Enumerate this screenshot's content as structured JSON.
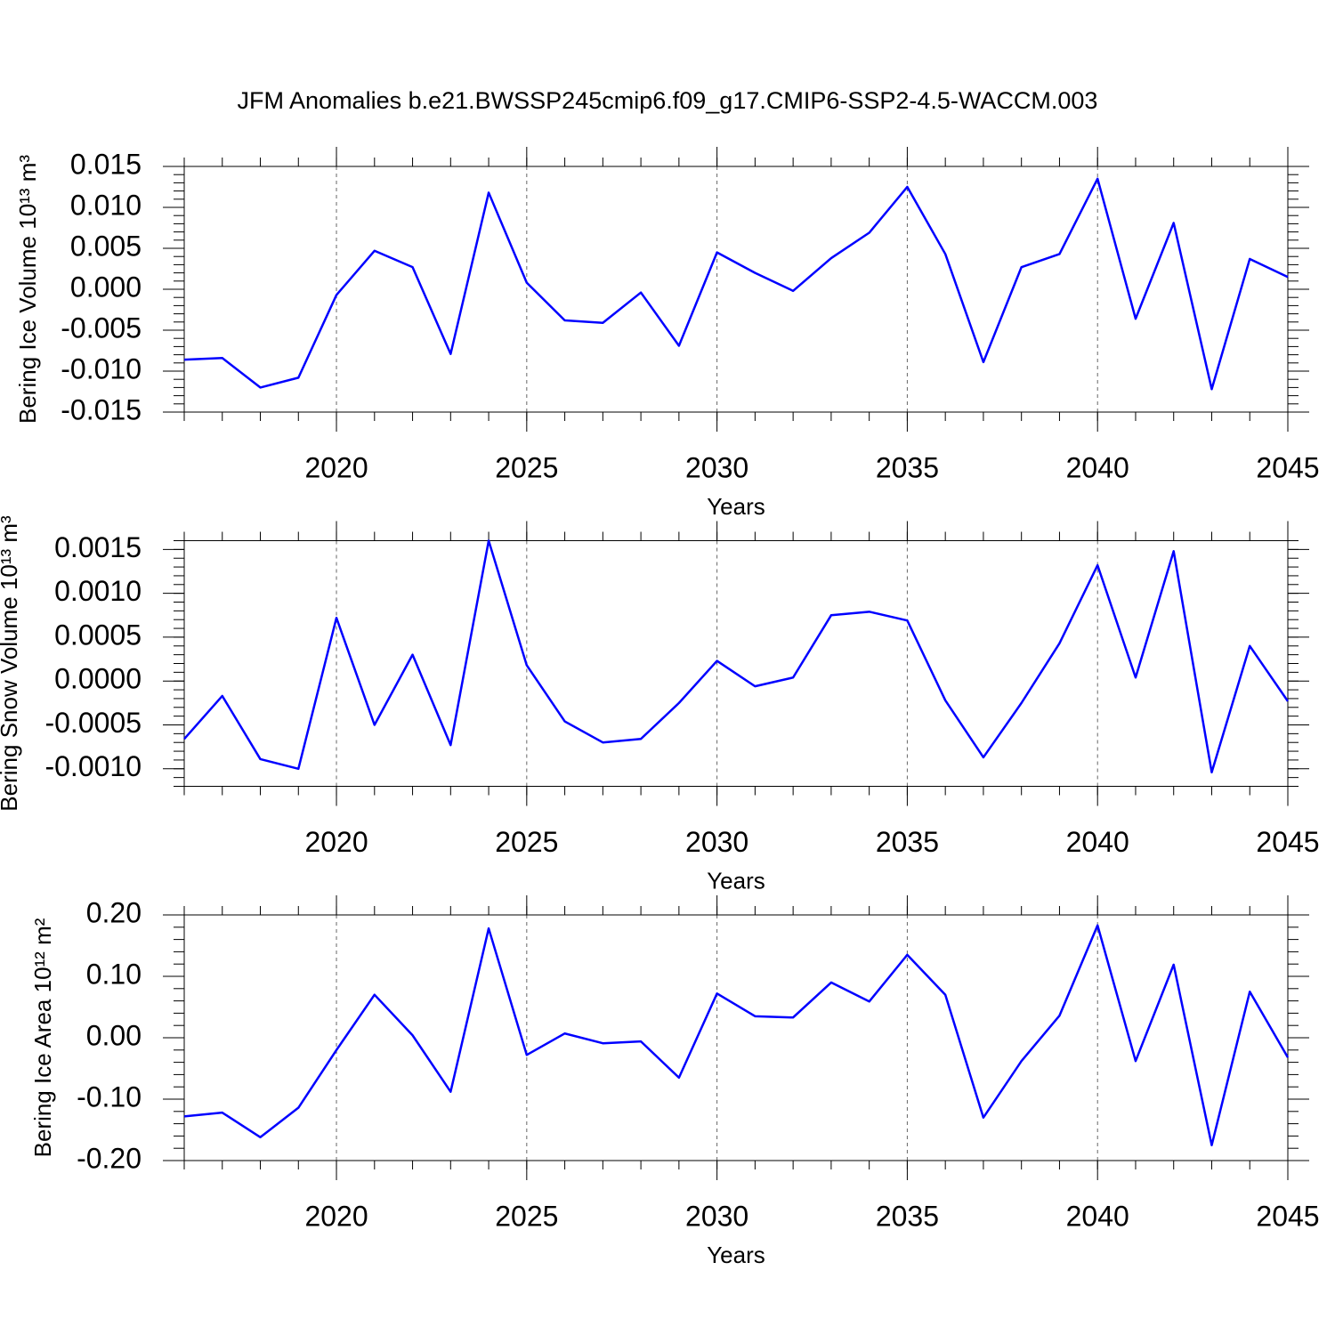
{
  "chart_data": [
    {
      "type": "line",
      "title": "JFM Anomalies b.e21.BWSSP245cmip6.f09_g17.CMIP6-SSP2-4.5-WACCM.003",
      "xlabel": "Years",
      "ylabel": "Bering Ice Volume 10¹³ m³",
      "x": [
        2016,
        2017,
        2018,
        2019,
        2020,
        2021,
        2022,
        2023,
        2024,
        2025,
        2026,
        2027,
        2028,
        2029,
        2030,
        2031,
        2032,
        2033,
        2034,
        2035,
        2036,
        2037,
        2038,
        2039,
        2040,
        2041,
        2042,
        2043,
        2044,
        2045
      ],
      "series": [
        {
          "color": "#0000ff",
          "values": [
            -0.0086,
            -0.0084,
            -0.012,
            -0.0108,
            -0.0007,
            0.0047,
            0.0027,
            -0.0079,
            0.0118,
            0.0008,
            -0.0038,
            -0.0041,
            -0.0004,
            -0.0069,
            0.0045,
            0.002,
            -0.0002,
            0.0038,
            0.0069,
            0.0125,
            0.0043,
            -0.0089,
            0.0027,
            0.0043,
            0.0135,
            -0.0036,
            0.0081,
            -0.0122,
            0.0037,
            0.0015
          ]
        }
      ],
      "xlim": [
        2016,
        2045
      ],
      "xticks": [
        2020,
        2025,
        2030,
        2035,
        2040,
        2045
      ],
      "ylim": [
        -0.015,
        0.015
      ],
      "yticks": [
        0.015,
        {
          "value": 0.01,
          "label": "0.010"
        },
        {
          "value": 0.005,
          "label": "0.005"
        },
        {
          "value": 0,
          "label": "0.000"
        },
        {
          "value": -0.005,
          "label": "-0.005"
        },
        {
          "value": -0.01,
          "label": "-0.010"
        },
        -0.015
      ],
      "grid": "x"
    },
    {
      "type": "line",
      "xlabel": "Years",
      "ylabel": "Bering Snow Volume 10¹³ m³",
      "x": [
        2016,
        2017,
        2018,
        2019,
        2020,
        2021,
        2022,
        2023,
        2024,
        2025,
        2026,
        2027,
        2028,
        2029,
        2030,
        2031,
        2032,
        2033,
        2034,
        2035,
        2036,
        2037,
        2038,
        2039,
        2040,
        2041,
        2042,
        2043,
        2044,
        2045
      ],
      "series": [
        {
          "color": "#0000ff",
          "values": [
            -0.00066,
            -0.00017,
            -0.00089,
            -0.001,
            0.00072,
            -0.0005,
            0.0003,
            -0.00073,
            0.0016,
            0.00018,
            -0.00046,
            -0.0007,
            -0.00066,
            -0.00025,
            0.00023,
            -6e-05,
            4e-05,
            0.00075,
            0.00079,
            0.00069,
            -0.00022,
            -0.00087,
            -0.00025,
            0.00043,
            0.00132,
            4e-05,
            0.00148,
            -0.00104,
            0.0004,
            -0.00023
          ]
        }
      ],
      "xlim": [
        2016,
        2045
      ],
      "xticks": [
        2020,
        2025,
        2030,
        2035,
        2040,
        2045
      ],
      "ylim": [
        -0.0012,
        0.0016
      ],
      "yticks": [
        {
          "value": 0.0015,
          "label": "0.0015"
        },
        {
          "value": 0.001,
          "label": "0.0010"
        },
        {
          "value": 0.0005,
          "label": "0.0005"
        },
        {
          "value": 0,
          "label": "0.0000"
        },
        {
          "value": -0.0005,
          "label": "-0.0005"
        },
        {
          "value": -0.001,
          "label": "-0.0010"
        }
      ],
      "grid": "x"
    },
    {
      "type": "line",
      "xlabel": "Years",
      "ylabel": "Bering Ice Area 10¹² m²",
      "x": [
        2016,
        2017,
        2018,
        2019,
        2020,
        2021,
        2022,
        2023,
        2024,
        2025,
        2026,
        2027,
        2028,
        2029,
        2030,
        2031,
        2032,
        2033,
        2034,
        2035,
        2036,
        2037,
        2038,
        2039,
        2040,
        2041,
        2042,
        2043,
        2044,
        2045
      ],
      "series": [
        {
          "color": "#0000ff",
          "values": [
            -0.128,
            -0.122,
            -0.162,
            -0.114,
            -0.02,
            0.07,
            0.004,
            -0.088,
            0.178,
            -0.028,
            0.007,
            -0.009,
            -0.006,
            -0.065,
            0.072,
            0.035,
            0.033,
            0.09,
            0.059,
            0.135,
            0.07,
            -0.13,
            -0.038,
            0.036,
            0.183,
            -0.038,
            0.119,
            -0.175,
            0.075,
            -0.032
          ]
        }
      ],
      "xlim": [
        2016,
        2045
      ],
      "xticks": [
        2020,
        2025,
        2030,
        2035,
        2040,
        2045
      ],
      "ylim": [
        -0.2,
        0.2
      ],
      "yticks": [
        {
          "value": 0.2,
          "label": "0.20"
        },
        {
          "value": 0.1,
          "label": "0.10"
        },
        {
          "value": 0,
          "label": "0.00"
        },
        {
          "value": -0.1,
          "label": "-0.10"
        },
        {
          "value": -0.2,
          "label": "-0.20"
        }
      ],
      "grid": "x"
    }
  ]
}
